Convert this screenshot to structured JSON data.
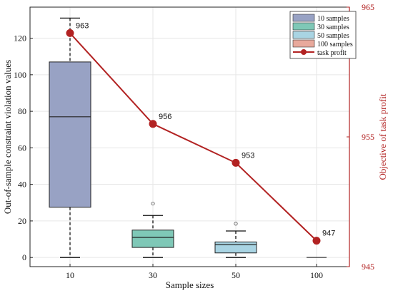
{
  "chart_data": {
    "type": "box+line",
    "xlabel": "Sample sizes",
    "ylabel_left": "Out-of-sample constraint violation values",
    "ylabel_right": "Objective of task profit",
    "categories": [
      "10",
      "30",
      "50",
      "100"
    ],
    "left_axis": {
      "range": [
        -5,
        137
      ],
      "ticks": [
        0,
        20,
        40,
        60,
        80,
        100,
        120
      ],
      "tick_labels": [
        "0",
        "20",
        "40",
        "60",
        "80",
        "100",
        "120"
      ]
    },
    "right_axis": {
      "range": [
        945,
        965
      ],
      "ticks": [
        945,
        955,
        965
      ],
      "tick_labels": [
        "945",
        "955",
        "965"
      ],
      "color": "#b22222"
    },
    "boxes": [
      {
        "name": "10 samples",
        "category": "10",
        "whisker_low": 0,
        "q1": 27.5,
        "median": 77,
        "q3": 107,
        "whisker_high": 131,
        "outliers": [],
        "color": "#98a2c4"
      },
      {
        "name": "30 samples",
        "category": "30",
        "whisker_low": 0,
        "q1": 5.5,
        "median": 11,
        "q3": 15,
        "whisker_high": 23,
        "outliers": [
          29.5
        ],
        "color": "#7fc8b7"
      },
      {
        "name": "50 samples",
        "category": "50",
        "whisker_low": 0,
        "q1": 2.5,
        "median": 7,
        "q3": 8.5,
        "whisker_high": 14.5,
        "outliers": [
          18.5
        ],
        "color": "#a9d4e3"
      },
      {
        "name": "100 samples",
        "category": "100",
        "whisker_low": 0,
        "q1": 0,
        "median": 0,
        "q3": 0,
        "whisker_high": 0,
        "outliers": [],
        "color": "#e8a99c"
      }
    ],
    "series": [
      {
        "name": "task profit",
        "axis": "right",
        "values": [
          963,
          956,
          953,
          947
        ],
        "point_labels": [
          "963",
          "956",
          "953",
          "947"
        ],
        "color": "#b22222"
      }
    ],
    "legend": {
      "placement": "top-right",
      "entries": [
        "10 samples",
        "30 samples",
        "50 samples",
        "100 samples",
        "task profit"
      ]
    },
    "grid": true
  }
}
